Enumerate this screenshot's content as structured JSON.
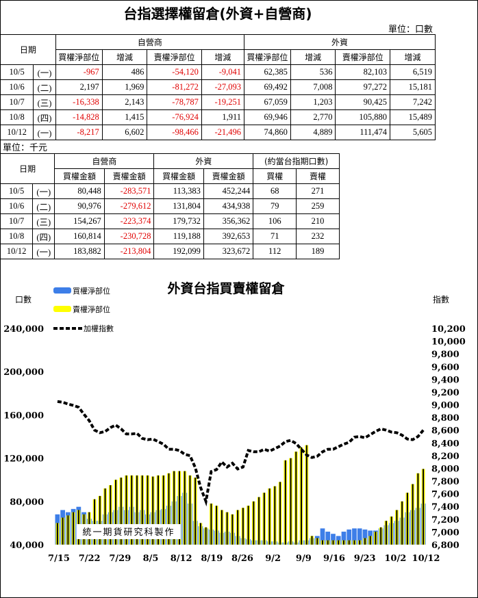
{
  "title": "台指選擇權留倉(外資+自營商)",
  "unit1": "單位：口數",
  "unit2": "單位：千元",
  "table1": {
    "date_header": "日期",
    "group_dealer": "自營商",
    "group_foreign": "外資",
    "cols": [
      "買權淨部位",
      "增減",
      "賣權淨部位",
      "增減",
      "買權淨部位",
      "增減",
      "賣權淨部位",
      "增減"
    ],
    "rows": [
      {
        "date": "10/5",
        "dow": "(一)",
        "cells": [
          "-967",
          "486",
          "-54,120",
          "-9,041",
          "62,385",
          "536",
          "82,103",
          "6,519"
        ],
        "red": [
          0,
          2,
          3
        ]
      },
      {
        "date": "10/6",
        "dow": "(二)",
        "cells": [
          "2,197",
          "1,969",
          "-81,272",
          "-27,093",
          "69,492",
          "7,008",
          "97,272",
          "15,181"
        ],
        "red": [
          2,
          3
        ]
      },
      {
        "date": "10/7",
        "dow": "(三)",
        "cells": [
          "-16,338",
          "2,143",
          "-78,787",
          "-19,251",
          "67,059",
          "1,203",
          "90,425",
          "7,242"
        ],
        "red": [
          0,
          2,
          3
        ]
      },
      {
        "date": "10/8",
        "dow": "(四)",
        "cells": [
          "-14,828",
          "1,415",
          "-76,924",
          "1,911",
          "69,946",
          "2,770",
          "105,880",
          "15,489"
        ],
        "red": [
          0,
          2
        ]
      },
      {
        "date": "10/12",
        "dow": "(一)",
        "cells": [
          "-8,217",
          "6,602",
          "-98,466",
          "-21,496",
          "74,860",
          "4,889",
          "111,474",
          "5,605"
        ],
        "red": [
          0,
          2,
          3
        ]
      }
    ]
  },
  "table2": {
    "date_header": "日期",
    "group_dealer": "自營商",
    "group_foreign": "外資",
    "group_equiv": "(約當台指期口數)",
    "cols": [
      "買權金額",
      "賣權金額",
      "買權金額",
      "賣權金額",
      "買權",
      "賣權"
    ],
    "rows": [
      {
        "date": "10/5",
        "dow": "(一)",
        "cells": [
          "80,448",
          "-283,571",
          "113,383",
          "452,244",
          "68",
          "271"
        ],
        "red": [
          1
        ]
      },
      {
        "date": "10/6",
        "dow": "(二)",
        "cells": [
          "90,976",
          "-279,612",
          "131,804",
          "434,938",
          "79",
          "259"
        ],
        "red": [
          1
        ]
      },
      {
        "date": "10/7",
        "dow": "(三)",
        "cells": [
          "154,267",
          "-223,374",
          "179,732",
          "356,362",
          "106",
          "210"
        ],
        "red": [
          1
        ]
      },
      {
        "date": "10/8",
        "dow": "(四)",
        "cells": [
          "160,814",
          "-230,728",
          "119,188",
          "392,653",
          "71",
          "232"
        ],
        "red": [
          1
        ]
      },
      {
        "date": "10/12",
        "dow": "(一)",
        "cells": [
          "183,882",
          "-213,804",
          "192,099",
          "323,672",
          "112",
          "189"
        ],
        "red": [
          1
        ]
      }
    ]
  },
  "chart_data": {
    "type": "bar",
    "title": "外資台指買賣權留倉",
    "ylabel_left": "口數",
    "ylabel_right": "指數",
    "watermark": "統一期貨研究科製作",
    "ylim_left": [
      40000,
      240000
    ],
    "yticks_left": [
      "40,000",
      "80,000",
      "120,000",
      "160,000",
      "200,000",
      "240,000"
    ],
    "ylim_right": [
      6800,
      10200
    ],
    "yticks_right": [
      "6,800",
      "7,000",
      "7,200",
      "7,400",
      "7,600",
      "7,800",
      "8,000",
      "8,200",
      "8,400",
      "8,600",
      "8,800",
      "9,000",
      "9,200",
      "9,400",
      "9,600",
      "9,800",
      "10,000",
      "10,200"
    ],
    "xticks": [
      "7/15",
      "7/22",
      "7/29",
      "8/5",
      "8/12",
      "8/19",
      "8/26",
      "9/2",
      "9/9",
      "9/16",
      "9/23",
      "10/2",
      "10/12"
    ],
    "legend": [
      "買權淨部位",
      "賣權淨部位",
      "加權指數"
    ],
    "colors": {
      "call": "#3d7ee8",
      "put": "#ffff00",
      "index": "#000000"
    },
    "series": [
      {
        "name": "買權淨部位",
        "values": [
          68000,
          72000,
          70000,
          73000,
          75000,
          70000,
          64000,
          62000,
          62000,
          68000,
          70000,
          72000,
          75000,
          72000,
          75000,
          70000,
          72000,
          68000,
          70000,
          72000,
          73000,
          76000,
          80000,
          85000,
          88000,
          78000,
          62000,
          57000,
          55000,
          54000,
          53000,
          51000,
          52000,
          51000,
          48000,
          46000,
          45000,
          44000,
          44000,
          44000,
          43000,
          43000,
          42000,
          42000,
          43000,
          42000,
          44000,
          44000,
          46000,
          48000,
          55000,
          52000,
          50000,
          48000,
          52000,
          54000,
          55000,
          55000,
          54000,
          53000,
          53000,
          55000,
          58000,
          60000,
          62000,
          65000,
          70000,
          72000,
          74000,
          78000
        ]
      },
      {
        "name": "賣權淨部位",
        "values": [
          60000,
          65000,
          67000,
          70000,
          72000,
          68000,
          70000,
          82000,
          85000,
          92000,
          95000,
          100000,
          102000,
          104000,
          104000,
          104000,
          104000,
          104000,
          103000,
          104000,
          104000,
          106000,
          108000,
          108000,
          108000,
          104000,
          102000,
          60000,
          56000,
          78000,
          76000,
          72000,
          70000,
          68000,
          72000,
          74000,
          76000,
          80000,
          84000,
          88000,
          92000,
          94000,
          98000,
          118000,
          120000,
          126000,
          130000,
          132000,
          48000,
          46000,
          44000,
          44000,
          44000,
          44000,
          44000,
          44000,
          44000,
          44000,
          46000,
          48000,
          52000,
          56000,
          62000,
          66000,
          72000,
          80000,
          88000,
          96000,
          106000,
          110000
        ]
      },
      {
        "name": "加權指數",
        "values": [
          9050,
          9040,
          9010,
          8990,
          8960,
          8850,
          8750,
          8600,
          8560,
          8580,
          8640,
          8680,
          8620,
          8540,
          8540,
          8550,
          8470,
          8450,
          8460,
          8420,
          8380,
          8300,
          8300,
          8280,
          8220,
          8200,
          8010,
          7700,
          7480,
          7950,
          7980,
          8100,
          8020,
          8080,
          7990,
          8020,
          8280,
          8260,
          8260,
          8300,
          8270,
          8310,
          8350,
          8420,
          8440,
          8390,
          8300,
          8210,
          8170,
          8190,
          8260,
          8300,
          8300,
          8340,
          8380,
          8410,
          8490,
          8500,
          8480,
          8530,
          8580,
          8620,
          8600,
          8570,
          8560,
          8520,
          8460,
          8450,
          8500,
          8600
        ]
      }
    ]
  }
}
